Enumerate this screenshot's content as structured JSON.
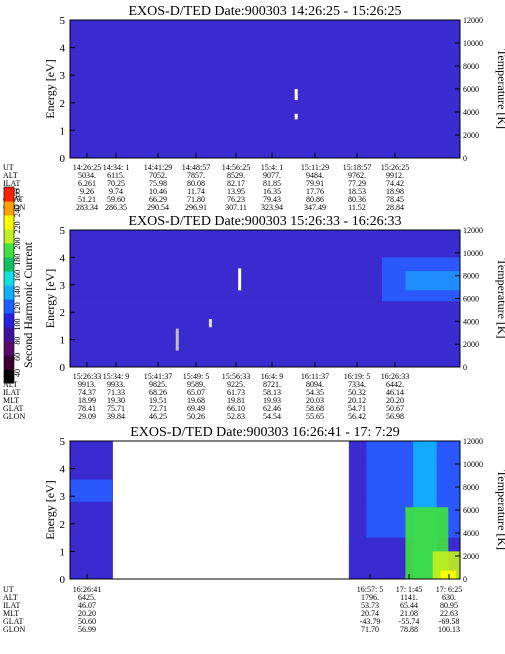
{
  "chart_data": [
    {
      "type": "heatmap",
      "title": "EXOS-D/TED   Date:900303   14:26:25 - 15:26:25",
      "ylabel": "Energy [eV]",
      "y2label": "Temperature [K]",
      "ylim": [
        0,
        5
      ],
      "y2lim": [
        0,
        12000
      ],
      "yticks": [
        "0",
        "1",
        "2",
        "3",
        "4",
        "5"
      ],
      "y2ticks": [
        "0",
        "2000",
        "4000",
        "6000",
        "8000",
        "10000",
        "12000"
      ],
      "background": "#3a2bd0",
      "features": [
        {
          "kind": "mark",
          "energy": 2.3,
          "height": 0.4,
          "color": "#ffffff",
          "tpos": 0.58
        },
        {
          "kind": "mark",
          "energy": 1.5,
          "height": 0.2,
          "color": "#ffffff",
          "tpos": 0.58
        }
      ],
      "table": {
        "labels": [
          "UT",
          "ALT",
          "ILAT",
          "MLT",
          "GLAT",
          "GLON"
        ],
        "columns": [
          [
            "14:26:25",
            "5034.",
            "6.261",
            "9.26",
            "51.21",
            "283.34"
          ],
          [
            "14:34: 1",
            "6115.",
            "70.25",
            "9.74",
            "59.60",
            "286.35"
          ],
          [
            "14:41:29",
            "7052.",
            "75.98",
            "10.46",
            "66.29",
            "290.54"
          ],
          [
            "14:48:57",
            "7857.",
            "80.08",
            "11.74",
            "71.80",
            "296.91"
          ],
          [
            "14:56:25",
            "8529.",
            "82.17",
            "13.95",
            "76.23",
            "307.11"
          ],
          [
            "15:4: 1",
            "9077.",
            "81.85",
            "16.35",
            "79.43",
            "323.94"
          ],
          [
            "15:11:29",
            "9484.",
            "79.91",
            "17.76",
            "80.86",
            "347.49"
          ],
          [
            "15:18:57",
            "9762.",
            "77.29",
            "18.53",
            "80.36",
            "11.52"
          ],
          [
            "15:26:25",
            "9912.",
            "74.42",
            "18.98",
            "78.45",
            "28.84"
          ]
        ]
      }
    },
    {
      "type": "heatmap",
      "title": "EXOS-D/TED   Date:900303   15:26:33 - 16:26:33",
      "ylabel": "Energy [eV]",
      "y2label": "Temperature [K]",
      "ylim": [
        0,
        5
      ],
      "y2lim": [
        0,
        12000
      ],
      "yticks": [
        "0",
        "1",
        "2",
        "3",
        "4",
        "5"
      ],
      "y2ticks": [
        "0",
        "2000",
        "4000",
        "6000",
        "8000",
        "10000",
        "12000"
      ],
      "background": "#3a2bd0",
      "colorbar": {
        "label": "Second Harmonic Current",
        "ticks": [
          "40",
          "60",
          "80",
          "100",
          "120",
          "140",
          "160",
          "180",
          "200",
          "220",
          "240",
          "260"
        ],
        "colors": [
          "#000000",
          "#3a0030",
          "#5a0a6a",
          "#4010a0",
          "#2a20e0",
          "#1a60ff",
          "#10b0ff",
          "#10e0e0",
          "#10c060",
          "#40e040",
          "#c0f020",
          "#ffff00",
          "#ffa000",
          "#ff2000"
        ]
      },
      "features": [
        {
          "kind": "mark",
          "energy": 3.2,
          "height": 0.8,
          "color": "#ffffff",
          "tpos": 0.435
        },
        {
          "kind": "mark",
          "energy": 1.6,
          "height": 0.3,
          "color": "#e0e0e0",
          "tpos": 0.36
        },
        {
          "kind": "mark",
          "energy": 1.0,
          "height": 0.8,
          "color": "#c0c0c0",
          "tpos": 0.275
        },
        {
          "kind": "band",
          "energy": 2.4,
          "height": 1.6,
          "color": "#2a5cff",
          "tstart": 0.8,
          "tend": 1.0
        },
        {
          "kind": "band",
          "energy": 2.8,
          "height": 0.7,
          "color": "#1e90ff",
          "tstart": 0.86,
          "tend": 1.0
        }
      ],
      "table": {
        "labels": [
          "UT",
          "ALT",
          "ILAT",
          "MLT",
          "GLAT",
          "GLON"
        ],
        "columns": [
          [
            "15:26:33",
            "9913.",
            "74.37",
            "18.99",
            "78.41",
            "29.09"
          ],
          [
            "15:34: 9",
            "9933.",
            "71.33",
            "19.30",
            "75.71",
            "39.84"
          ],
          [
            "15:41:37",
            "9825.",
            "68.26",
            "19.51",
            "72.71",
            "46.25"
          ],
          [
            "15:49: 5",
            "9589.",
            "65.07",
            "19.68",
            "69.49",
            "50.26"
          ],
          [
            "15:56:33",
            "9225.",
            "61.73",
            "19.81",
            "66.10",
            "52.83"
          ],
          [
            "16:4: 9",
            "8721.",
            "58.13",
            "19.93",
            "62.46",
            "54.54"
          ],
          [
            "16:11:37",
            "8094.",
            "54.35",
            "20.03",
            "58.68",
            "55.65"
          ],
          [
            "16:19: 5",
            "7334.",
            "50.32",
            "20.12",
            "54.71",
            "56.42"
          ],
          [
            "16:26:33",
            "6442.",
            "46.14",
            "20.20",
            "50.67",
            "56.98"
          ]
        ]
      }
    },
    {
      "type": "heatmap",
      "title": "EXOS-D/TED   Date:900303  16:26:41 - 17: 7:29",
      "ylabel": "Energy [eV]",
      "y2label": "Temperature [K]",
      "ylim": [
        0,
        5
      ],
      "y2lim": [
        0,
        12000
      ],
      "yticks": [
        "0",
        "1",
        "2",
        "3",
        "4",
        "5"
      ],
      "y2ticks": [
        "0",
        "2000",
        "4000",
        "6000",
        "8000",
        "10000",
        "12000"
      ],
      "background": "#3a2bd0",
      "data_segments": [
        {
          "tstart": 0.0,
          "tend": 0.11
        },
        {
          "tstart": 0.715,
          "tend": 1.0
        }
      ],
      "features": [
        {
          "kind": "band",
          "energy": 2.8,
          "height": 0.8,
          "color": "#2a5cff",
          "tstart": 0.0,
          "tend": 0.11
        },
        {
          "kind": "band",
          "energy": 1.5,
          "height": 3.5,
          "color": "#2a5cff",
          "tstart": 0.76,
          "tend": 1.0
        },
        {
          "kind": "band",
          "energy": 0.0,
          "height": 5.0,
          "color": "#10b0ff",
          "tstart": 0.88,
          "tend": 0.94
        },
        {
          "kind": "band",
          "energy": 0.0,
          "height": 2.6,
          "color": "#40e040",
          "tstart": 0.86,
          "tend": 0.97
        },
        {
          "kind": "band",
          "energy": 0.0,
          "height": 1.0,
          "color": "#c0f020",
          "tstart": 0.93,
          "tend": 1.0
        },
        {
          "kind": "band",
          "energy": 0.0,
          "height": 0.3,
          "color": "#ffff00",
          "tstart": 0.95,
          "tend": 0.99
        }
      ],
      "table": {
        "labels": [
          "UT",
          "ALT",
          "ILAT",
          "MLT",
          "GLAT",
          "GLON"
        ],
        "columns": [
          [
            "16:26:41",
            "6425.",
            "46.07",
            "20.20",
            "50.60",
            "56.99"
          ],
          [
            "16:57: 5",
            "1796.",
            "53.73",
            "20.74",
            "-43.79",
            "71.70"
          ],
          [
            "17: 1:45",
            "1141.",
            "65.44",
            "21.08",
            "-55.74",
            "78.88"
          ],
          [
            "17: 6:25",
            "630.",
            "80.95",
            "22.63",
            "-69.58",
            "100.13"
          ]
        ]
      }
    }
  ]
}
